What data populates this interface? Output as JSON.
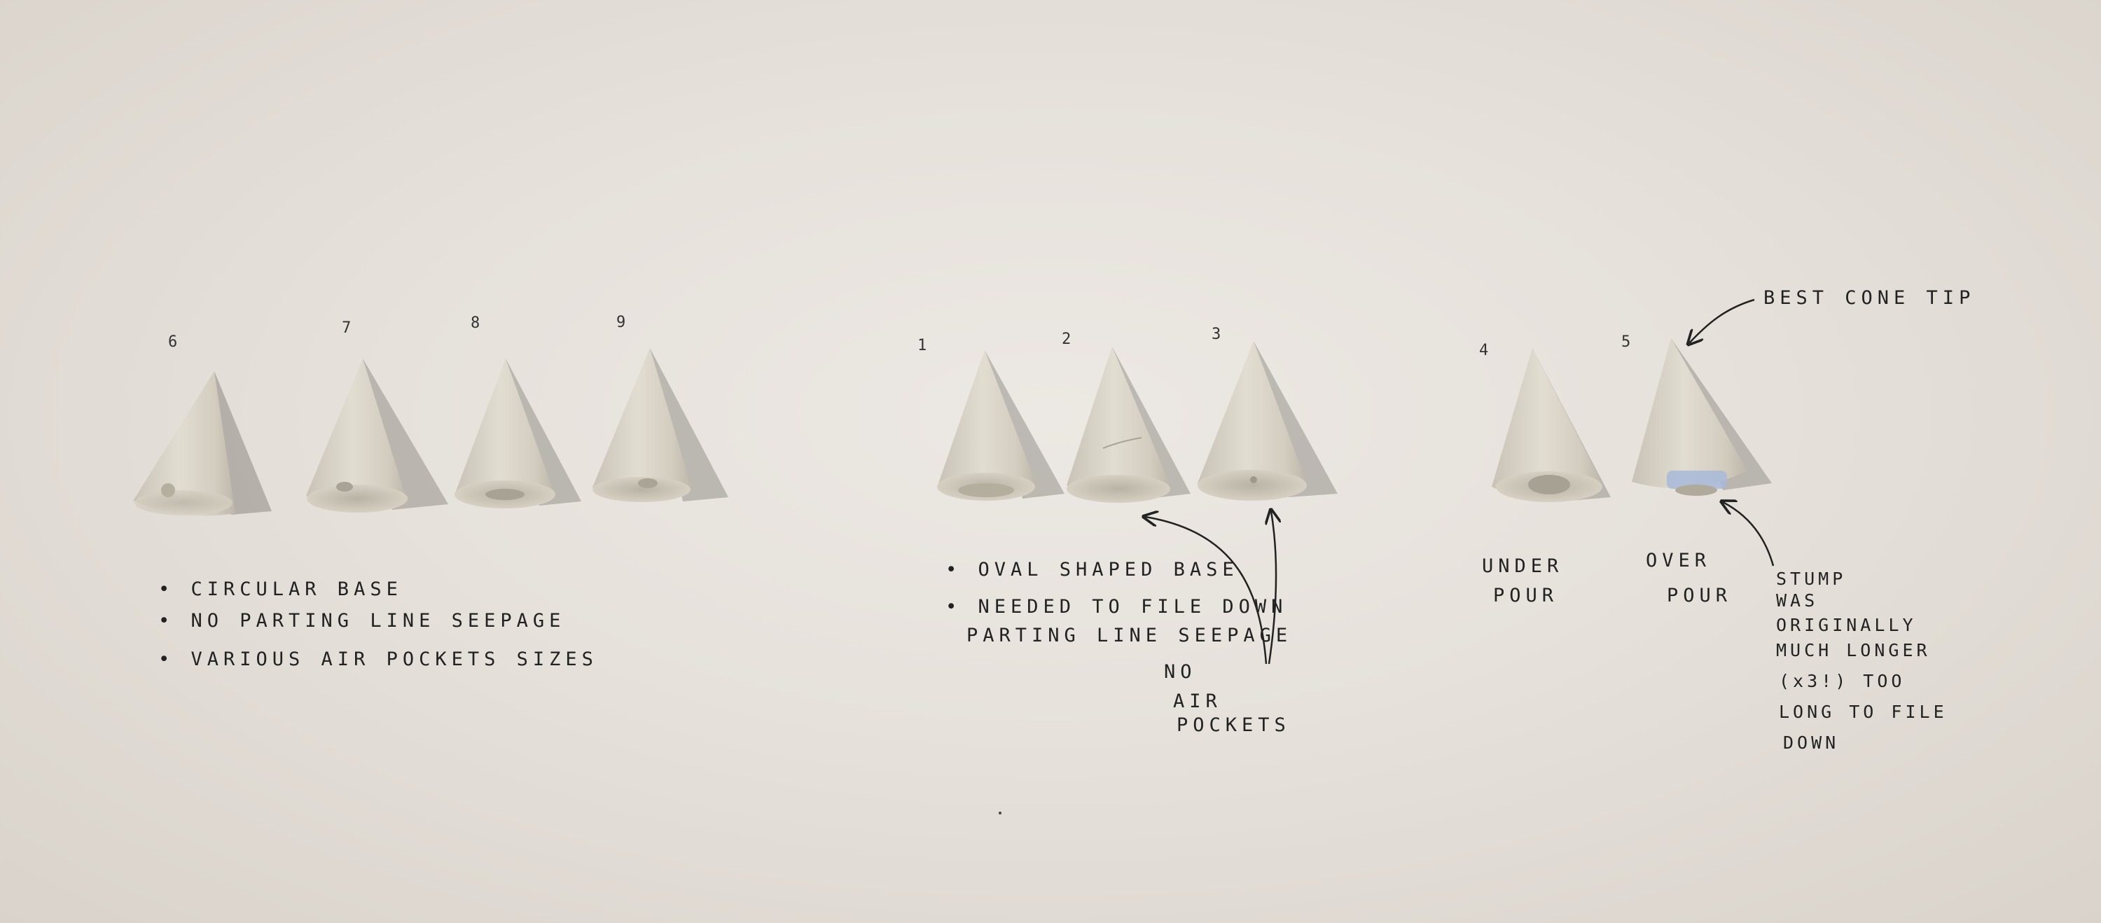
{
  "cone_numbers": [
    "6",
    "7",
    "8",
    "9",
    "1",
    "2",
    "3",
    "4",
    "5"
  ],
  "group_left": {
    "notes": [
      "• CIRCULAR BASE",
      "• NO PARTING LINE SEEPAGE",
      "• VARIOUS AIR POCKETS SIZES"
    ]
  },
  "group_middle": {
    "notes": [
      "• OVAL SHAPED BASE",
      "• NEEDED TO FILE DOWN",
      "PARTING LINE SEEPAGE"
    ],
    "arrow_note": [
      "NO",
      "AIR",
      "POCKETS"
    ]
  },
  "group_right": {
    "under_label": [
      "UNDER",
      "POUR"
    ],
    "over_label": [
      "OVER",
      "POUR"
    ],
    "best_tip_label": "BEST CONE TIP",
    "stump_note": [
      "STUMP",
      "WAS",
      "ORIGINALLY",
      "MUCH LONGER",
      "(x3!) TOO",
      "LONG TO FILE",
      "DOWN"
    ]
  },
  "colors": {
    "background": "#e6e1db",
    "cone": "#d8d3c7",
    "shadow": "#8e8a84",
    "ink": "#222222",
    "blue_tape": "#a8b8d8"
  }
}
